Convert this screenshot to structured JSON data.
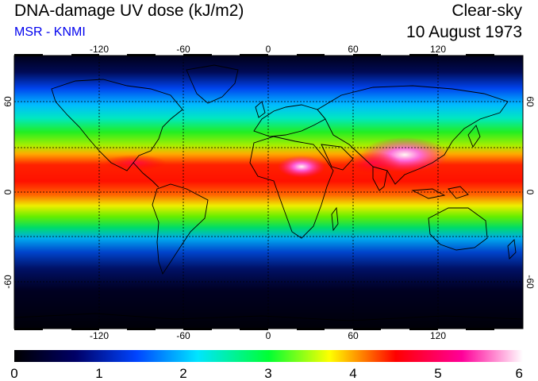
{
  "header": {
    "title": "DNA-damage UV dose (kJ/m2)",
    "credit": "MSR - KNMI",
    "condition": "Clear-sky",
    "date": "10 August 1973"
  },
  "map": {
    "lon_ticks": [
      "-120",
      "-60",
      "0",
      "60",
      "120"
    ],
    "lat_ticks": [
      "60",
      "0",
      "-60"
    ],
    "gridlines": true,
    "projection": "equirectangular"
  },
  "colorbar": {
    "ticks": [
      "0",
      "1",
      "2",
      "3",
      "4",
      "5",
      "6"
    ],
    "colors": [
      "#000000",
      "#000066",
      "#0044ff",
      "#00e5ff",
      "#00ff33",
      "#ffff00",
      "#ff0000",
      "#ff0099",
      "#ffffff"
    ]
  }
}
